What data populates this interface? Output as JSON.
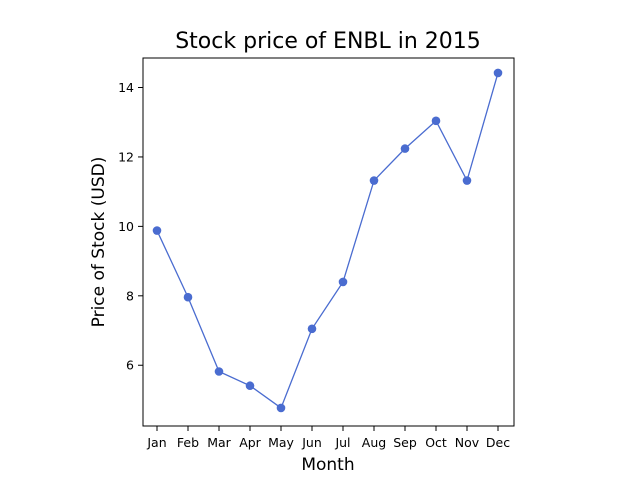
{
  "chart_data": {
    "type": "line",
    "title": "Stock price of ENBL in 2015",
    "xlabel": "Month",
    "ylabel": "Price of Stock (USD)",
    "categories": [
      "Jan",
      "Feb",
      "Mar",
      "Apr",
      "May",
      "Jun",
      "Jul",
      "Aug",
      "Sep",
      "Oct",
      "Nov",
      "Dec"
    ],
    "series": [
      {
        "values": [
          9.88,
          7.96,
          5.82,
          5.41,
          4.77,
          7.05,
          8.4,
          11.32,
          12.24,
          13.04,
          11.32,
          14.42
        ],
        "color": "#4a6cd0"
      }
    ],
    "ylim": [
      4.25,
      14.85
    ],
    "yticks": [
      6,
      8,
      10,
      12,
      14
    ],
    "grid": false,
    "legend": "none"
  }
}
